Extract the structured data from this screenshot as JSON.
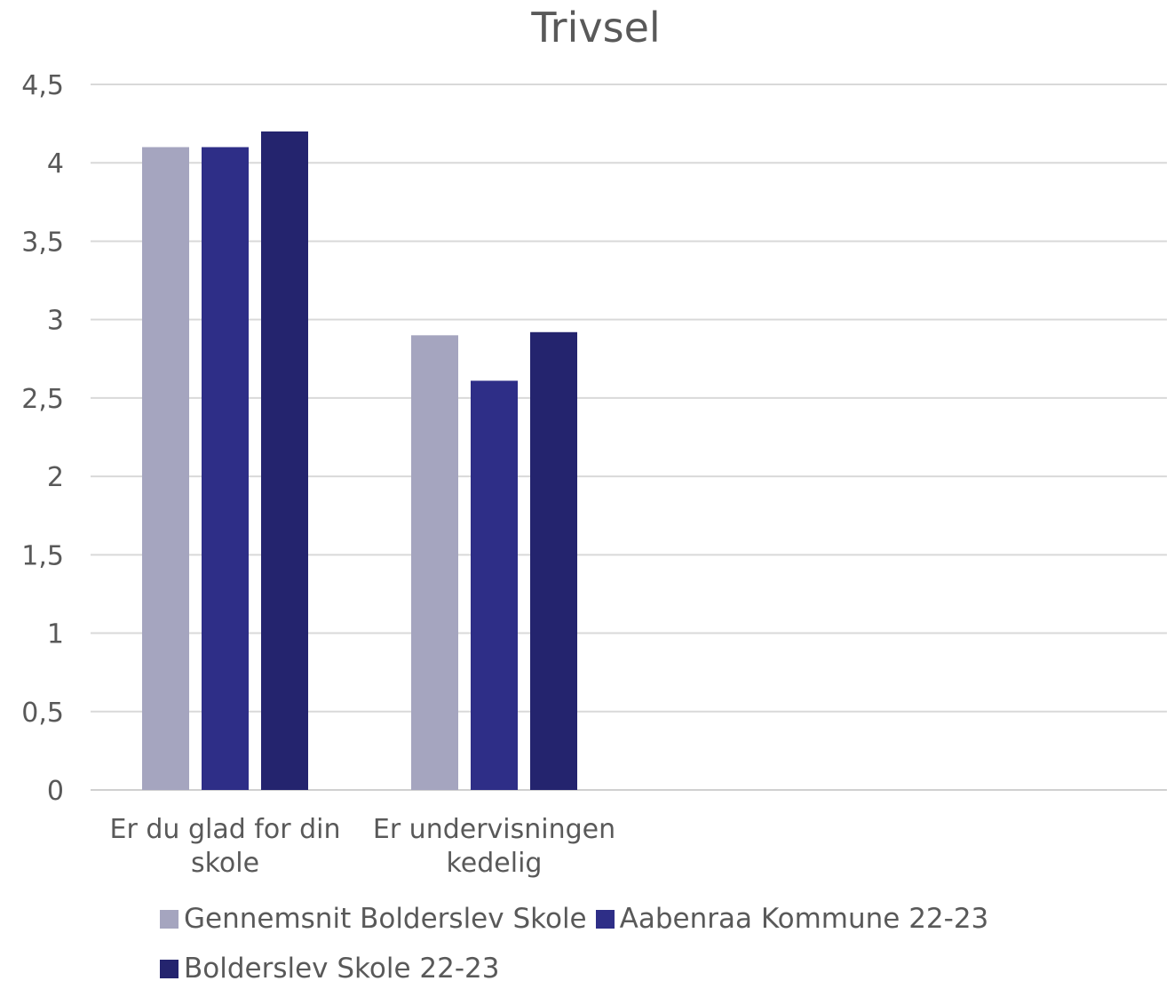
{
  "chart_data": {
    "type": "bar",
    "title": "Trivsel",
    "categories": [
      [
        "Er du glad for din",
        "skole"
      ],
      [
        "Er undervisningen",
        "kedelig"
      ],
      [
        "",
        ""
      ],
      [
        "",
        ""
      ]
    ],
    "series": [
      {
        "name": "Gennemsnit Bolderslev Skole",
        "color": "#a5a5bf",
        "values": [
          4.1,
          2.9,
          null,
          null
        ]
      },
      {
        "name": "Aabenraa Kommune 22-23",
        "color": "#2e2e87",
        "values": [
          4.1,
          2.61,
          null,
          null
        ]
      },
      {
        "name": "Bolderslev Skole 22-23",
        "color": "#24246e",
        "values": [
          4.2,
          2.92,
          null,
          null
        ]
      }
    ],
    "y_ticks": [
      "0",
      "0,5",
      "1",
      "1,5",
      "2",
      "2,5",
      "3",
      "3,5",
      "4",
      "4,5"
    ],
    "ylim": [
      0,
      4.5
    ],
    "grid": true,
    "legend_position": "bottom"
  }
}
